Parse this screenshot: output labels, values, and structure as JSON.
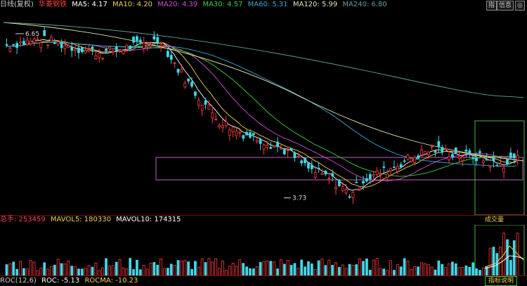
{
  "header": {
    "period": "日线(复权)",
    "stock": "华菱钢铁",
    "ma": [
      {
        "label": "MA5: 4.17",
        "color": "#ffffff"
      },
      {
        "label": "MA10: 4.20",
        "color": "#f2d24b"
      },
      {
        "label": "MA20: 4.39",
        "color": "#d44dd6"
      },
      {
        "label": "MA30: 4.57",
        "color": "#3fcf3f"
      },
      {
        "label": "MA60: 5.31",
        "color": "#3aa9d9"
      },
      {
        "label": "MA120: 5.99",
        "color": "#e6e6b0"
      },
      {
        "label": "MA240: 6.80",
        "color": "#5f9fa0"
      }
    ],
    "buttons": {
      "left": "指",
      "mid": "信息",
      "right": "◎"
    }
  },
  "annotations": {
    "high": "6.65",
    "low": "3.73"
  },
  "volume_header": {
    "items": [
      {
        "label": "总手: 253459",
        "color": "#ff4040"
      },
      {
        "label": "MAVOL5: 180330",
        "color": "#f2d24b"
      },
      {
        "label": "MAVOL10: 174315",
        "color": "#ffffff"
      }
    ],
    "tab": "成交量"
  },
  "roc_header": {
    "items": [
      {
        "label": "ROC(12,6)",
        "color": "#cccccc"
      },
      {
        "label": "ROC: -5.13",
        "color": "#ffffff"
      },
      {
        "label": "ROCMA: -10.23",
        "color": "#f2d24b"
      }
    ],
    "tab": "指标说明"
  },
  "colors": {
    "up": "#ff3b3b",
    "down": "#3fd6e6",
    "grid": "#8b0000",
    "box": "#c060c0",
    "frame": "#3fb93f"
  }
}
